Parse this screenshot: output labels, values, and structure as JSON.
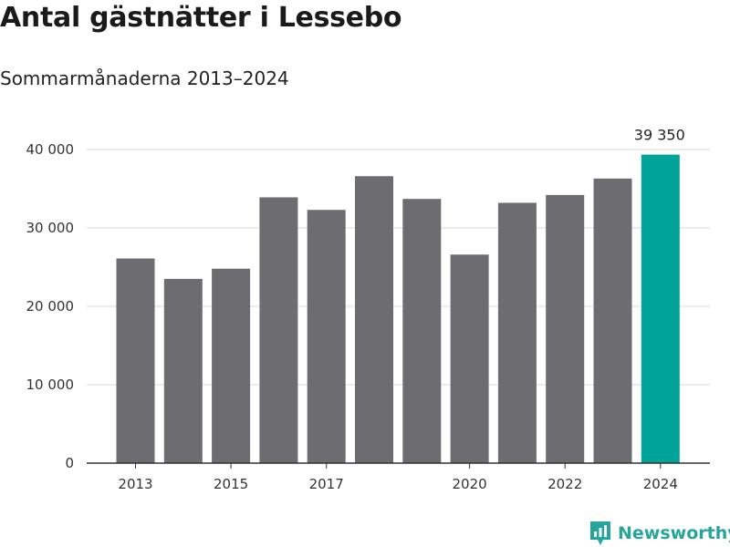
{
  "chart_data": {
    "type": "bar",
    "title": "Antal gästnätter i Lessebo",
    "subtitle": "Sommarmånaderna 2013–2024",
    "categories": [
      "2013",
      "2014",
      "2015",
      "2016",
      "2017",
      "2018",
      "2019",
      "2020",
      "2021",
      "2022",
      "2023",
      "2024"
    ],
    "values": [
      26100,
      23500,
      24800,
      33900,
      32300,
      36600,
      33700,
      26600,
      33200,
      34200,
      36300,
      39350
    ],
    "x_tick_labels": [
      "2013",
      "2015",
      "2017",
      "2020",
      "2022",
      "2024"
    ],
    "y_ticks": [
      0,
      10000,
      20000,
      30000,
      40000
    ],
    "y_tick_labels": [
      "0",
      "10 000",
      "20 000",
      "30 000",
      "40 000"
    ],
    "ylim": [
      0,
      40000
    ],
    "grid": true,
    "highlight_index": 11,
    "highlight_label": "39 350",
    "colors": {
      "bar": "#6d6c71",
      "highlight": "#00a39a",
      "grid": "#d9d9d9",
      "axis": "#333333"
    }
  },
  "brand": {
    "name": "Newsworthy",
    "icon": "newsworthy-logo-icon"
  }
}
